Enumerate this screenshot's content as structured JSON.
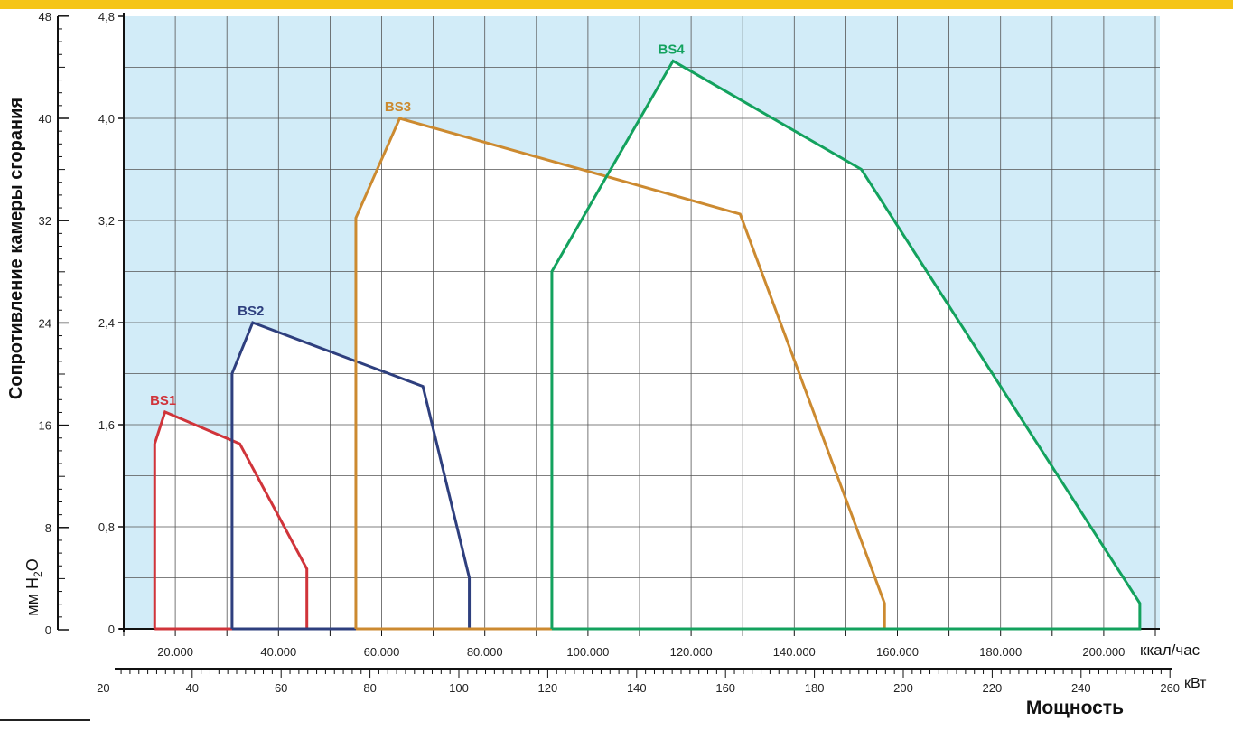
{
  "chart_data": {
    "type": "line",
    "y_left_label": "Сопротивление камеры сгорания",
    "y_left_unit_prefix": "мм H",
    "y_left_unit_sub": "2",
    "y_left_unit_suffix": "O",
    "y_left_ticks": [
      "48",
      "40",
      "32",
      "24",
      "16",
      "8",
      "0"
    ],
    "y_inner_ticks": [
      "4,8",
      "4,0",
      "3,2",
      "2,4",
      "1,6",
      "0,8",
      "0"
    ],
    "ylim": [
      0,
      4.8
    ],
    "xlim": [
      10000,
      210000
    ],
    "x_kcal_ticks": [
      "20.000",
      "40.000",
      "60.000",
      "80.000",
      "100.000",
      "120.000",
      "140.000",
      "160.000",
      "180.000",
      "200.000"
    ],
    "x_kcal_unit": "ккал/час",
    "x_kw_ticks": [
      "20",
      "40",
      "60",
      "80",
      "100",
      "120",
      "140",
      "160",
      "180",
      "200",
      "220",
      "240",
      "260"
    ],
    "x_kw_unit": "кВт",
    "xlabel": "Мощность",
    "grid": true,
    "series": [
      {
        "name": "BS1",
        "color": "#d0343a",
        "points": [
          [
            16000,
            0
          ],
          [
            16000,
            1.45
          ],
          [
            18000,
            1.7
          ],
          [
            32500,
            1.45
          ],
          [
            45500,
            0.47
          ],
          [
            45500,
            0
          ],
          [
            16000,
            0
          ]
        ]
      },
      {
        "name": "BS2",
        "color": "#2e3f7e",
        "points": [
          [
            31000,
            0
          ],
          [
            31000,
            2.0
          ],
          [
            35000,
            2.4
          ],
          [
            68000,
            1.9
          ],
          [
            77000,
            0.4
          ],
          [
            77000,
            0
          ],
          [
            31000,
            0
          ]
        ]
      },
      {
        "name": "BS3",
        "color": "#cc8a30",
        "points": [
          [
            55000,
            0
          ],
          [
            55000,
            3.22
          ],
          [
            63500,
            4.0
          ],
          [
            129500,
            3.25
          ],
          [
            157500,
            0.2
          ],
          [
            157500,
            0
          ],
          [
            55000,
            0
          ]
        ]
      },
      {
        "name": "BS4",
        "color": "#13a25e",
        "points": [
          [
            93000,
            0
          ],
          [
            93000,
            2.8
          ],
          [
            116500,
            4.45
          ],
          [
            153000,
            3.6
          ],
          [
            207000,
            0.2
          ],
          [
            207000,
            0
          ],
          [
            93000,
            0
          ]
        ]
      }
    ]
  }
}
